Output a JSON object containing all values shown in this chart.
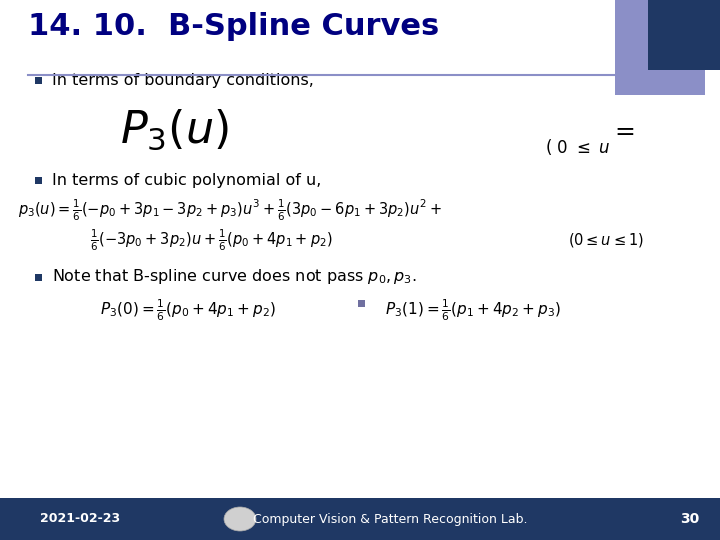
{
  "title": "14. 10.  B-Spline Curves",
  "title_color": "#000080",
  "bg_color": "#ffffff",
  "footer_bg": "#1f3864",
  "footer_text_color": "#ffffff",
  "footer_date": "2021-02-23",
  "footer_lab": "Computer Vision & Pattern Recognition Lab.",
  "footer_page": "30",
  "square1_color": "#8b8fc7",
  "square2_color": "#1f3864",
  "bullet_color": "#1f3864",
  "line_color": "#8b8fc7"
}
